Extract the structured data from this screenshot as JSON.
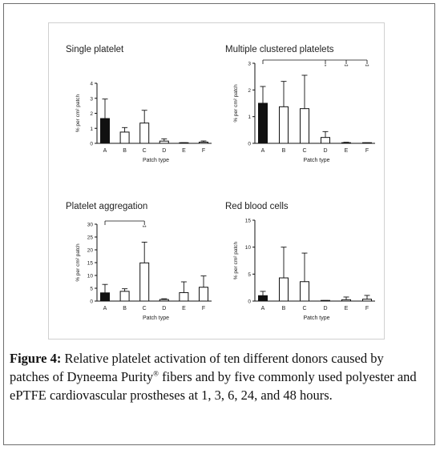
{
  "chart_data": [
    {
      "type": "bar",
      "title": "Single platelet",
      "ylabel": "% per cm² patch",
      "xlabel": "Patch type",
      "categories": [
        "A",
        "B",
        "C",
        "D",
        "E",
        "F"
      ],
      "values": [
        1.65,
        0.75,
        1.35,
        0.15,
        0.02,
        0.08
      ],
      "errors": [
        1.3,
        0.3,
        0.85,
        0.15,
        0.02,
        0.08
      ],
      "ylim": [
        0,
        4
      ],
      "yticks": [
        0,
        1,
        2,
        3,
        4
      ],
      "significance": []
    },
    {
      "type": "bar",
      "title": "Multiple clustered platelets",
      "ylabel": "% per cm² patch",
      "xlabel": "Patch type",
      "categories": [
        "A",
        "B",
        "C",
        "D",
        "E",
        "F"
      ],
      "values": [
        1.5,
        1.37,
        1.3,
        0.22,
        0.02,
        0.01
      ],
      "errors": [
        0.63,
        0.95,
        1.25,
        0.22,
        0.02,
        0.01
      ],
      "ylim": [
        0,
        3
      ],
      "yticks": [
        0,
        1,
        2,
        3
      ],
      "significance": [
        {
          "from": "A",
          "to": "D",
          "label": "*"
        },
        {
          "from": "A",
          "to": "E",
          "label": "**"
        },
        {
          "from": "A",
          "to": "F",
          "label": "**"
        }
      ]
    },
    {
      "type": "bar",
      "title": "Platelet aggregation",
      "ylabel": "% per cm² patch",
      "xlabel": "Patch type",
      "categories": [
        "A",
        "B",
        "C",
        "D",
        "E",
        "F"
      ],
      "values": [
        3.2,
        3.8,
        14.9,
        0.6,
        3.3,
        5.4
      ],
      "errors": [
        3.3,
        1.0,
        8.1,
        0.3,
        4.2,
        4.4
      ],
      "ylim": [
        0,
        30
      ],
      "yticks": [
        0,
        5,
        10,
        15,
        20,
        25,
        30
      ],
      "significance": [
        {
          "from": "A",
          "to": "C",
          "label": "**"
        }
      ]
    },
    {
      "type": "bar",
      "title": "Red blood cells",
      "ylabel": "% per cm² patch",
      "xlabel": "Patch type",
      "categories": [
        "A",
        "B",
        "C",
        "D",
        "E",
        "F"
      ],
      "values": [
        1.0,
        4.3,
        3.6,
        0.05,
        0.25,
        0.35
      ],
      "errors": [
        0.8,
        5.7,
        5.3,
        0.05,
        0.5,
        0.7
      ],
      "ylim": [
        0,
        15
      ],
      "yticks": [
        0,
        5,
        10,
        15
      ],
      "significance": []
    }
  ],
  "caption": {
    "label": "Figure 4:",
    "text_before_sup": " Relative platelet activation of ten different donors caused by patches of Dyneema Purity",
    "sup": "®",
    "text_after_sup": " fibers and by five commonly used polyester and ePTFE cardiovascular prostheses at 1, 3, 6, 24, and 48 hours."
  },
  "colors": {
    "first_bar_fill": "#111111",
    "other_bar_fill": "#ffffff",
    "stroke": "#111111"
  }
}
